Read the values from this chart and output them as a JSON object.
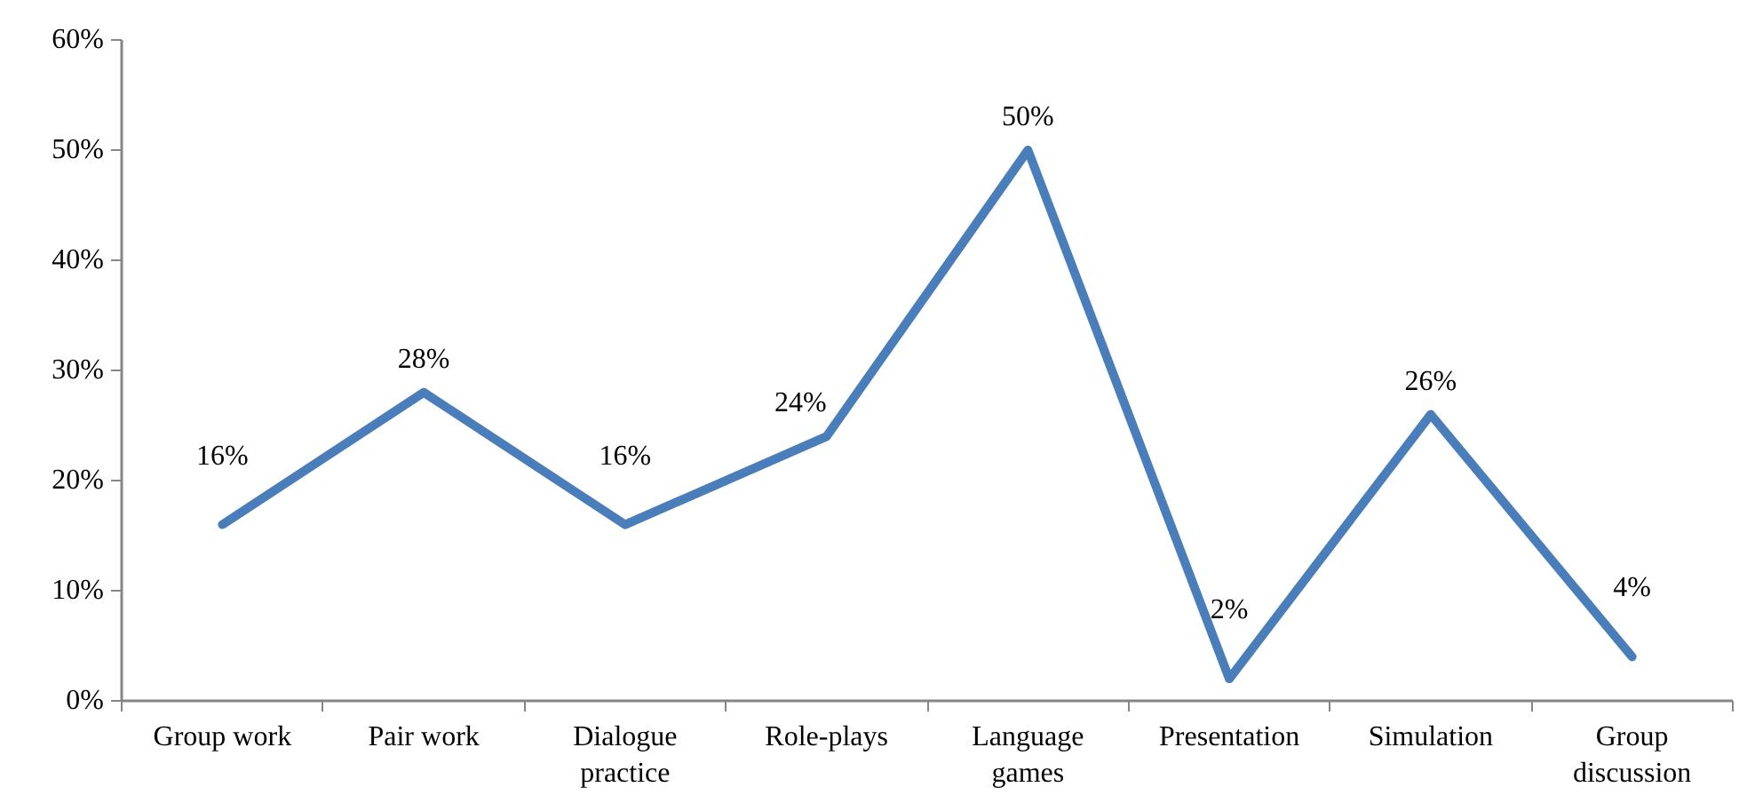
{
  "chart_data": {
    "type": "line",
    "categories": [
      "Group work",
      "Pair work",
      "Dialogue practice",
      "Role-plays",
      "Language games",
      "Presentation",
      "Simulation",
      "Group discussion"
    ],
    "series": [
      {
        "color": "#4a7ebb",
        "values": [
          16,
          28,
          16,
          24,
          50,
          2,
          26,
          4
        ],
        "value_labels": [
          "16%",
          "28%",
          "16%",
          "24%",
          "50%",
          "2%",
          "26%",
          "4%"
        ]
      }
    ],
    "ylim": [
      0,
      60
    ],
    "yticks": [
      {
        "value": 0,
        "label": "0%"
      },
      {
        "value": 10,
        "label": "10%"
      },
      {
        "value": 20,
        "label": "20%"
      },
      {
        "value": 30,
        "label": "30%"
      },
      {
        "value": 40,
        "label": "40%"
      },
      {
        "value": 50,
        "label": "50%"
      },
      {
        "value": 60,
        "label": "60%"
      }
    ],
    "grid": false,
    "marker": "none",
    "line_style": "solid"
  }
}
